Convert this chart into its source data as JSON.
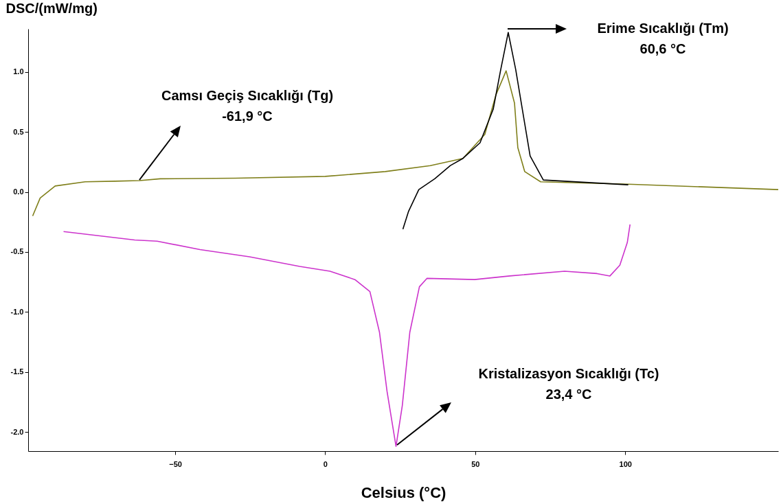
{
  "chart_data": {
    "type": "line",
    "xlabel": "Celsius (°C)",
    "ylabel": "DSC/(mW/mg)",
    "xlim": [
      -99,
      151
    ],
    "ylim": [
      -2.16,
      1.36
    ],
    "xticks": [
      -50,
      0,
      50,
      100
    ],
    "yticks": [
      {
        "value": 1,
        "label": "1.0"
      },
      {
        "value": 0.5,
        "label": "0.5"
      },
      {
        "value": 0,
        "label": "0.0"
      },
      {
        "value": -0.5,
        "label": "-0.5"
      },
      {
        "value": -1,
        "label": "-1.0"
      },
      {
        "value": -1.5,
        "label": "-1.5"
      },
      {
        "value": -2,
        "label": "-2.0"
      }
    ],
    "grid": false,
    "series": [
      {
        "color": "#7f7f1a",
        "x": [
          -97.5,
          -95,
          -90,
          -80,
          -70,
          -61.9,
          -55,
          -30,
          0,
          20,
          35,
          45.9,
          53.2,
          56.9,
          60.3,
          63.1,
          64.2,
          66.5,
          71.8,
          101,
          151
        ],
        "values": [
          -0.2,
          -0.05,
          0.05,
          0.085,
          0.09,
          0.095,
          0.11,
          0.115,
          0.13,
          0.17,
          0.22,
          0.28,
          0.48,
          0.81,
          1.01,
          0.74,
          0.37,
          0.17,
          0.085,
          0.065,
          0.02
        ]
      },
      {
        "color": "#000000",
        "x": [
          25.9,
          27.8,
          31.2,
          36.5,
          41.7,
          45.9,
          51.6,
          56,
          58.5,
          61,
          63.5,
          66.1,
          68.3,
          72.7,
          101
        ],
        "values": [
          -0.31,
          -0.16,
          0.02,
          0.11,
          0.22,
          0.28,
          0.41,
          0.69,
          1.02,
          1.33,
          1.02,
          0.63,
          0.3,
          0.1,
          0.06
        ]
      },
      {
        "color": "#cc33cc",
        "x": [
          -87.2,
          -63.5,
          -56,
          -41.7,
          -25.2,
          -8.5,
          1.6,
          9.9,
          14.9,
          18.1,
          20.6,
          23.6,
          25.7,
          28.2,
          31.4,
          33.9,
          49.8,
          61.5,
          79.8,
          90.6,
          94.9,
          98.2,
          100.7,
          101.6
        ],
        "values": [
          -0.33,
          -0.4,
          -0.41,
          -0.48,
          -0.54,
          -0.62,
          -0.66,
          -0.73,
          -0.83,
          -1.17,
          -1.66,
          -2.12,
          -1.78,
          -1.17,
          -0.79,
          -0.72,
          -0.73,
          -0.7,
          -0.66,
          -0.68,
          -0.7,
          -0.61,
          -0.42,
          -0.27
        ]
      }
    ],
    "annotations": [
      "Camsı Geçiş Sıcaklığı (Tg)\n-61,9 °C",
      "Erime Sıcaklığı (Tm)\n60,6 °C",
      "Kristalizasyon Sıcaklığı (Tc)\n23,4 °C"
    ]
  }
}
